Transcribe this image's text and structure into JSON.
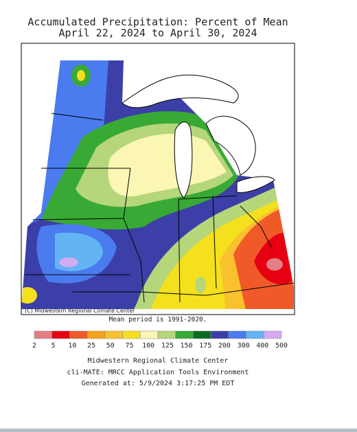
{
  "title": "Accumulated Precipitation: Percent of Mean",
  "subtitle": "April 22, 2024 to April 30, 2024",
  "copyright": "(C) Midwestern Regional Climate Center",
  "mean_period": "Mean period is 1991-2020.",
  "legend": {
    "colors": [
      "#e37e84",
      "#e60012",
      "#f05a28",
      "#f7a11a",
      "#f9c12e",
      "#f4e01c",
      "#fbf6b3",
      "#b5d67a",
      "#39a935",
      "#0a6a22",
      "#3c3fa7",
      "#4a7bef",
      "#62b4f5",
      "#d4aaf0"
    ],
    "labels": [
      2,
      5,
      10,
      25,
      50,
      75,
      100,
      125,
      150,
      175,
      200,
      300,
      400,
      500
    ]
  },
  "footer": [
    "Midwestern Regional Climate Center",
    "cli-MATE: MRCC Application Tools Environment",
    "Generated at: 5/9/2024 3:17:25 PM EDT"
  ]
}
